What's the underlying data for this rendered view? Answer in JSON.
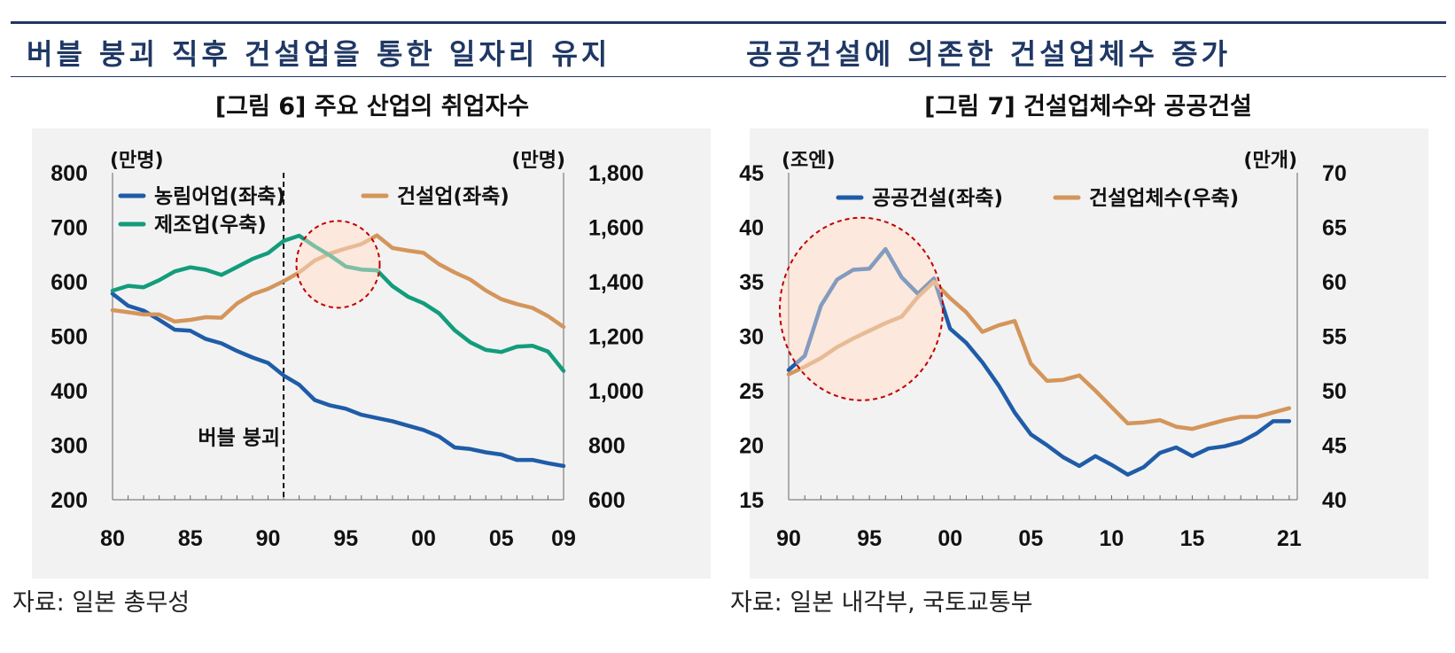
{
  "left": {
    "heading": "버블 붕괴 직후 건설업을 통한 일자리 유지",
    "figure_title": "[그림 6] 주요 산업의 취업자수",
    "source": "자료: 일본 총무성"
  },
  "right": {
    "heading": "공공건설에 의존한 건설업체수 증가",
    "figure_title": "[그림 7] 건설업체수와 공공건설",
    "source": "자료: 일본 내각부, 국토교통부"
  },
  "colors": {
    "blue": "#1f5ca8",
    "orange": "#d4955b",
    "green": "#139c7b",
    "navy": "#1f3864",
    "highlight": "#fde4d4",
    "circle": "#c00000"
  },
  "chart_data": [
    {
      "type": "line",
      "title": "[그림 6] 주요 산업의 취업자수",
      "left_unit": "(만명)",
      "right_unit": "(만명)",
      "x": [
        1980,
        1981,
        1982,
        1983,
        1984,
        1985,
        1986,
        1987,
        1988,
        1989,
        1990,
        1991,
        1992,
        1993,
        1994,
        1995,
        1996,
        1997,
        1998,
        1999,
        2000,
        2001,
        2002,
        2003,
        2004,
        2005,
        2006,
        2007,
        2008,
        2009
      ],
      "x_tick_values": [
        1980,
        1985,
        1990,
        1995,
        2000,
        2005,
        2009
      ],
      "x_tick_labels": [
        "80",
        "85",
        "90",
        "95",
        "00",
        "05",
        "09"
      ],
      "xlim": [
        1980,
        2009
      ],
      "ylim_left": [
        200,
        800
      ],
      "ylim_right": [
        600,
        1800
      ],
      "y_ticks_left": [
        "200",
        "300",
        "400",
        "500",
        "600",
        "700",
        "800"
      ],
      "y_ticks_right": [
        "600",
        "800",
        "1,000",
        "1,200",
        "1,400",
        "1,600",
        "1,800"
      ],
      "series": [
        {
          "name": "농림어업(좌축)",
          "axis": "left",
          "color": "#1f5ca8",
          "values": [
            578,
            556,
            547,
            530,
            512,
            510,
            495,
            487,
            473,
            461,
            451,
            428,
            411,
            383,
            373,
            367,
            356,
            350,
            344,
            336,
            328,
            316,
            296,
            293,
            287,
            283,
            273,
            273,
            267,
            262
          ]
        },
        {
          "name": "건설업(좌축)",
          "axis": "right_as_left_legend",
          "axis_used": "left",
          "color": "#d4955b",
          "values": [
            548,
            544,
            540,
            540,
            527,
            530,
            535,
            534,
            560,
            577,
            587,
            601,
            617,
            639,
            652,
            661,
            669,
            685,
            662,
            657,
            653,
            632,
            617,
            604,
            584,
            568,
            559,
            552,
            537,
            517
          ]
        },
        {
          "name": "제조업(우축)",
          "axis": "right",
          "color": "#139c7b",
          "values": [
            1367,
            1385,
            1380,
            1406,
            1438,
            1453,
            1444,
            1425,
            1454,
            1484,
            1505,
            1550,
            1569,
            1530,
            1496,
            1456,
            1445,
            1442,
            1384,
            1345,
            1321,
            1284,
            1222,
            1178,
            1150,
            1142,
            1162,
            1165,
            1144,
            1073
          ]
        }
      ],
      "annotation": "버블 붕괴",
      "annotation_x": 1991
    },
    {
      "type": "line",
      "title": "[그림 7] 건설업체수와 공공건설",
      "left_unit": "(조엔)",
      "right_unit": "(만개)",
      "x": [
        1990,
        1991,
        1992,
        1993,
        1994,
        1995,
        1996,
        1997,
        1998,
        1999,
        2000,
        2001,
        2002,
        2003,
        2004,
        2005,
        2006,
        2007,
        2008,
        2009,
        2010,
        2011,
        2012,
        2013,
        2014,
        2015,
        2016,
        2017,
        2018,
        2019,
        2020,
        2021
      ],
      "x_tick_values": [
        1990,
        1995,
        2000,
        2005,
        2010,
        2015,
        2021
      ],
      "x_tick_labels": [
        "90",
        "95",
        "00",
        "05",
        "10",
        "15",
        "21"
      ],
      "xlim": [
        1990,
        2021.5
      ],
      "ylim_left": [
        15,
        45
      ],
      "ylim_right": [
        40,
        70
      ],
      "y_ticks_left": [
        "15",
        "20",
        "25",
        "30",
        "35",
        "40",
        "45"
      ],
      "y_ticks_right": [
        "40",
        "45",
        "50",
        "55",
        "60",
        "65",
        "70"
      ],
      "series": [
        {
          "name": "공공건설(좌축)",
          "axis": "left",
          "color": "#1f5ca8",
          "values": [
            26.9,
            28.2,
            32.8,
            35.2,
            36.1,
            36.2,
            38.0,
            35.4,
            33.9,
            35.3,
            30.7,
            29.4,
            27.6,
            25.5,
            23.0,
            21.0,
            20.0,
            18.9,
            18.1,
            19.0,
            18.2,
            17.3,
            18.0,
            19.3,
            19.8,
            19.0,
            19.7,
            19.9,
            20.3,
            21.1,
            22.2,
            22.2
          ]
        },
        {
          "name": "건설업체수(우축)",
          "axis": "right",
          "color": "#d4955b",
          "values": [
            51.5,
            52.2,
            53.0,
            54.0,
            54.8,
            55.5,
            56.2,
            56.8,
            58.6,
            60.0,
            58.5,
            57.2,
            55.4,
            56.0,
            56.4,
            52.5,
            50.9,
            51.0,
            51.4,
            50.0,
            48.5,
            47.0,
            47.1,
            47.3,
            46.7,
            46.5,
            46.9,
            47.3,
            47.6,
            47.6,
            48.0,
            48.4
          ]
        }
      ]
    }
  ]
}
